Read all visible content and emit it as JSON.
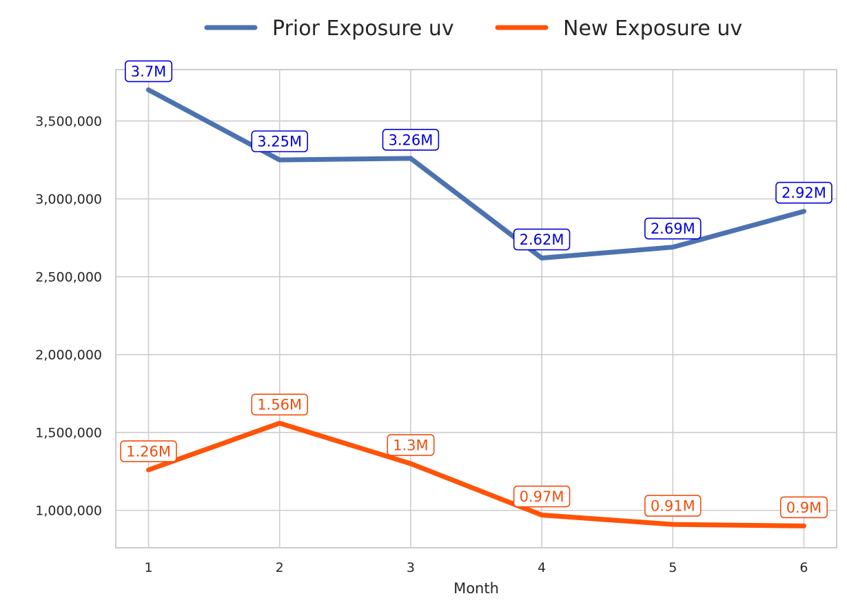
{
  "chart_data": {
    "type": "line",
    "xlabel": "Month",
    "ylabel": "",
    "x": [
      1,
      2,
      3,
      4,
      5,
      6
    ],
    "xticks": [
      "1",
      "2",
      "3",
      "4",
      "5",
      "6"
    ],
    "yticks": [
      1000000,
      1500000,
      2000000,
      2500000,
      3000000,
      3500000
    ],
    "ytick_labels": [
      "1,000,000",
      "1,500,000",
      "2,000,000",
      "2,500,000",
      "3,000,000",
      "3,500,000"
    ],
    "xlim": [
      0.75,
      6.25
    ],
    "ylim": [
      760000,
      3830000
    ],
    "grid": true,
    "legend_position": "top-center",
    "series": [
      {
        "name": "Prior Exposure uv",
        "color": "#4c72b0",
        "label_color": "#0000dd",
        "values": [
          3700000,
          3250000,
          3260000,
          2620000,
          2690000,
          2920000
        ],
        "labels": [
          "3.7M",
          "3.25M",
          "3.26M",
          "2.62M",
          "2.69M",
          "2.92M"
        ]
      },
      {
        "name": "New Exposure uv",
        "color": "#ff5308",
        "label_color": "#f04e0c",
        "values": [
          1260000,
          1560000,
          1300000,
          970000,
          910000,
          900000
        ],
        "labels": [
          "1.26M",
          "1.56M",
          "1.3M",
          "0.97M",
          "0.91M",
          "0.9M"
        ]
      }
    ]
  }
}
